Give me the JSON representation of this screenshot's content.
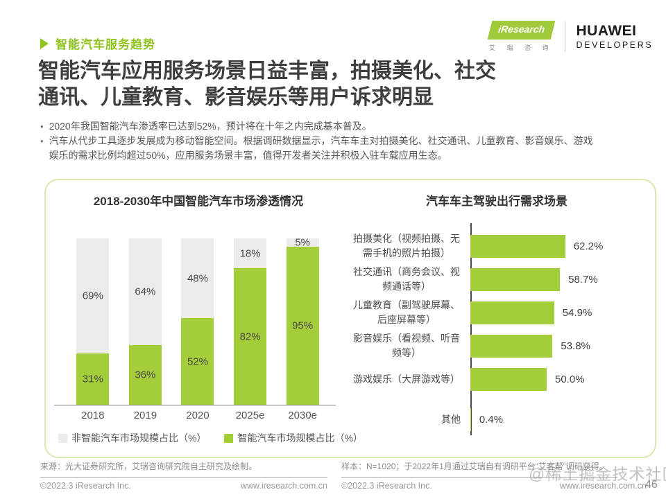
{
  "page": {
    "number": "46",
    "watermark": "@稀土掘金技术社区"
  },
  "header": {
    "section_tag": "智能汽车服务趋势",
    "title_line1": "智能汽车应用服务场景日益丰富，拍摄美化、社交",
    "title_line2": "通讯、儿童教育、影音娱乐等用户诉求明显",
    "bullets": [
      "2020年我国智能汽车渗透率已达到52%，预计将在十年之内完成基本普及。",
      "汽车从代步工具逐步发展成为移动智能空间。根据调研数据显示，汽车车主对拍摄美化、社交通讯、儿童教育、影音娱乐、游戏娱乐的需求比例均超过50%，应用服务场景丰富，值得开发者关注并积极入驻车载应用生态。"
    ],
    "logos": {
      "iresearch": "iResearch",
      "iresearch_cn": "艾 瑞 咨 询",
      "huawei": "HUAWEI",
      "huawei_sub": "DEVELOPERS"
    }
  },
  "colors": {
    "green": "#a4cd3a",
    "gray_bar": "#ebebe9",
    "tag_green": "#8fc31f",
    "panel_border": "#d9e8b0"
  },
  "chart_data": [
    {
      "type": "bar",
      "stacked": true,
      "title": "2018-2030年中国智能汽车市场渗透情况",
      "categories": [
        "2018",
        "2019",
        "2020",
        "2025e",
        "2030e"
      ],
      "series": [
        {
          "name": "非智能汽车市场规模占比（%）",
          "color_key": "gray_bar",
          "values": [
            69,
            64,
            48,
            18,
            5
          ]
        },
        {
          "name": "智能汽车市场规模占比（%）",
          "color_key": "green",
          "values": [
            31,
            36,
            52,
            82,
            95
          ]
        }
      ],
      "value_suffix": "%",
      "ylim": [
        0,
        100
      ],
      "legend_position": "bottom"
    },
    {
      "type": "bar",
      "orientation": "horizontal",
      "title": "汽车车主驾驶出行需求场景",
      "categories": [
        "拍摄美化（视频拍摄、无需手机的照片拍摄）",
        "社交通讯（商务会议、视频通话等）",
        "儿童教育（副驾驶屏幕、后座屏幕等）",
        "影音娱乐（看视频、听音频等）",
        "游戏娱乐（大屏游戏等）",
        "其他"
      ],
      "values": [
        62.2,
        58.7,
        54.9,
        53.8,
        50.0,
        0.4
      ],
      "value_labels": [
        "62.2%",
        "58.7%",
        "54.9%",
        "53.8%",
        "50.0%",
        "0.4%"
      ],
      "xlim": [
        0,
        70
      ]
    }
  ],
  "footer": {
    "left_source": "来源：光大证券研究所，艾瑞咨询研究院自主研究及绘制。",
    "right_source": "样本：N=1020；于2022年1月通过艾瑞自有调研平台“艾客帮”调研获得。",
    "copyright": "©2022.3 iResearch Inc.",
    "site": "www.iresearch.com.cn"
  }
}
